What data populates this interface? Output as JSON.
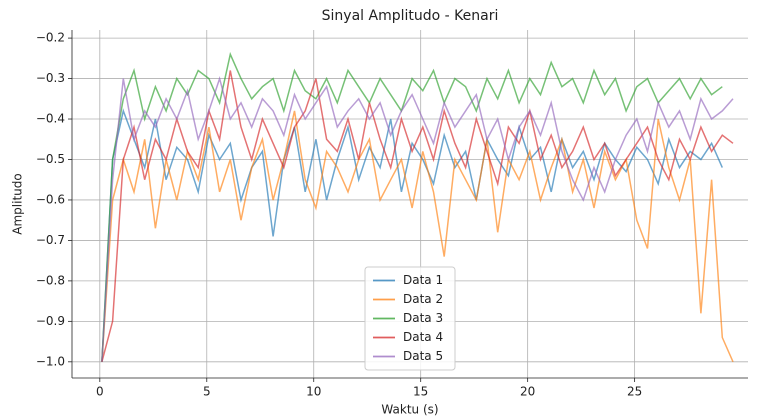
{
  "chart_data": {
    "type": "line",
    "title": "Sinyal Amplitudo - Kenari",
    "x_label": "Waktu (s)",
    "y_label": "Amplitudo",
    "x": [
      0.1,
      0.6,
      1.1,
      1.6,
      2.1,
      2.6,
      3.1,
      3.6,
      4.1,
      4.6,
      5.1,
      5.6,
      6.1,
      6.6,
      7.1,
      7.6,
      8.1,
      8.6,
      9.1,
      9.6,
      10.1,
      10.6,
      11.1,
      11.6,
      12.1,
      12.6,
      13.1,
      13.6,
      14.1,
      14.6,
      15.1,
      15.6,
      16.1,
      16.6,
      17.1,
      17.6,
      18.1,
      18.6,
      19.1,
      19.6,
      20.1,
      20.6,
      21.1,
      21.6,
      22.1,
      22.6,
      23.1,
      23.6,
      24.1,
      24.6,
      25.1,
      25.6,
      26.1,
      26.6,
      27.1,
      27.6,
      28.1,
      28.6,
      29.1,
      29.6
    ],
    "series": [
      {
        "name": "Data 1",
        "color": "#1f77b4",
        "values": [
          -1.0,
          -0.5,
          -0.38,
          -0.45,
          -0.52,
          -0.4,
          -0.55,
          -0.47,
          -0.5,
          -0.58,
          -0.44,
          -0.5,
          -0.46,
          -0.6,
          -0.52,
          -0.48,
          -0.69,
          -0.5,
          -0.42,
          -0.58,
          -0.45,
          -0.6,
          -0.5,
          -0.42,
          -0.55,
          -0.47,
          -0.52,
          -0.4,
          -0.58,
          -0.46,
          -0.5,
          -0.56,
          -0.44,
          -0.52,
          -0.48,
          -0.6,
          -0.45,
          -0.5,
          -0.54,
          -0.42,
          -0.5,
          -0.47,
          -0.58,
          -0.45,
          -0.52,
          -0.48,
          -0.55,
          -0.46,
          -0.5,
          -0.53,
          -0.47,
          -0.5,
          -0.56,
          -0.45,
          -0.52,
          -0.48,
          -0.5,
          -0.46,
          -0.52,
          null
        ]
      },
      {
        "name": "Data 2",
        "color": "#ff7f0e",
        "values": [
          -1.0,
          -0.6,
          -0.5,
          -0.58,
          -0.45,
          -0.67,
          -0.5,
          -0.6,
          -0.48,
          -0.55,
          -0.42,
          -0.58,
          -0.5,
          -0.65,
          -0.52,
          -0.45,
          -0.6,
          -0.5,
          -0.38,
          -0.55,
          -0.62,
          -0.48,
          -0.52,
          -0.58,
          -0.5,
          -0.45,
          -0.6,
          -0.55,
          -0.5,
          -0.62,
          -0.48,
          -0.58,
          -0.74,
          -0.5,
          -0.55,
          -0.6,
          -0.45,
          -0.68,
          -0.5,
          -0.55,
          -0.48,
          -0.6,
          -0.52,
          -0.45,
          -0.58,
          -0.5,
          -0.62,
          -0.48,
          -0.55,
          -0.5,
          -0.65,
          -0.72,
          -0.4,
          -0.52,
          -0.6,
          -0.5,
          -0.88,
          -0.55,
          -0.94,
          -1.0
        ]
      },
      {
        "name": "Data 3",
        "color": "#2ca02c",
        "values": [
          -1.0,
          -0.5,
          -0.35,
          -0.28,
          -0.4,
          -0.32,
          -0.38,
          -0.3,
          -0.34,
          -0.28,
          -0.3,
          -0.36,
          -0.24,
          -0.3,
          -0.35,
          -0.32,
          -0.3,
          -0.38,
          -0.28,
          -0.33,
          -0.35,
          -0.3,
          -0.36,
          -0.28,
          -0.32,
          -0.36,
          -0.3,
          -0.34,
          -0.38,
          -0.3,
          -0.33,
          -0.28,
          -0.36,
          -0.3,
          -0.32,
          -0.38,
          -0.3,
          -0.35,
          -0.28,
          -0.36,
          -0.3,
          -0.34,
          -0.26,
          -0.32,
          -0.3,
          -0.36,
          -0.28,
          -0.34,
          -0.3,
          -0.38,
          -0.32,
          -0.3,
          -0.36,
          -0.33,
          -0.3,
          -0.35,
          -0.3,
          -0.34,
          -0.32,
          null
        ]
      },
      {
        "name": "Data 4",
        "color": "#d62728",
        "values": [
          -1.0,
          -0.9,
          -0.5,
          -0.42,
          -0.55,
          -0.45,
          -0.5,
          -0.4,
          -0.48,
          -0.52,
          -0.38,
          -0.45,
          -0.28,
          -0.42,
          -0.5,
          -0.4,
          -0.46,
          -0.52,
          -0.42,
          -0.38,
          -0.3,
          -0.45,
          -0.48,
          -0.4,
          -0.5,
          -0.36,
          -0.45,
          -0.52,
          -0.4,
          -0.48,
          -0.42,
          -0.5,
          -0.38,
          -0.46,
          -0.52,
          -0.4,
          -0.48,
          -0.56,
          -0.42,
          -0.46,
          -0.38,
          -0.5,
          -0.44,
          -0.52,
          -0.48,
          -0.42,
          -0.5,
          -0.46,
          -0.54,
          -0.5,
          -0.46,
          -0.42,
          -0.5,
          -0.55,
          -0.45,
          -0.5,
          -0.42,
          -0.48,
          -0.44,
          -0.46
        ]
      },
      {
        "name": "Data 5",
        "color": "#9467bd",
        "values": [
          -1.0,
          -0.55,
          -0.3,
          -0.45,
          -0.38,
          -0.42,
          -0.35,
          -0.4,
          -0.33,
          -0.45,
          -0.38,
          -0.3,
          -0.4,
          -0.36,
          -0.42,
          -0.35,
          -0.38,
          -0.44,
          -0.34,
          -0.4,
          -0.36,
          -0.32,
          -0.42,
          -0.38,
          -0.35,
          -0.4,
          -0.36,
          -0.44,
          -0.38,
          -0.34,
          -0.4,
          -0.46,
          -0.36,
          -0.42,
          -0.38,
          -0.34,
          -0.45,
          -0.4,
          -0.5,
          -0.42,
          -0.38,
          -0.44,
          -0.36,
          -0.48,
          -0.55,
          -0.6,
          -0.52,
          -0.58,
          -0.5,
          -0.44,
          -0.4,
          -0.48,
          -0.36,
          -0.42,
          -0.38,
          -0.45,
          -0.35,
          -0.4,
          -0.38,
          -0.35
        ]
      }
    ],
    "xlim": [
      -1.3,
      30.3
    ],
    "ylim": [
      -1.04,
      -0.18
    ],
    "xticks": [
      0,
      5,
      10,
      15,
      20,
      25
    ],
    "yticks": [
      {
        "value": -1.0,
        "label": "−1.0"
      },
      {
        "value": -0.9,
        "label": "−0.9"
      },
      {
        "value": -0.8,
        "label": "−0.8"
      },
      {
        "value": -0.7,
        "label": "−0.7"
      },
      {
        "value": -0.6,
        "label": "−0.6"
      },
      {
        "value": -0.5,
        "label": "−0.5"
      },
      {
        "value": -0.4,
        "label": "−0.4"
      },
      {
        "value": -0.3,
        "label": "−0.3"
      },
      {
        "value": -0.2,
        "label": "−0.2"
      }
    ],
    "grid": true,
    "legend": "lower center"
  }
}
